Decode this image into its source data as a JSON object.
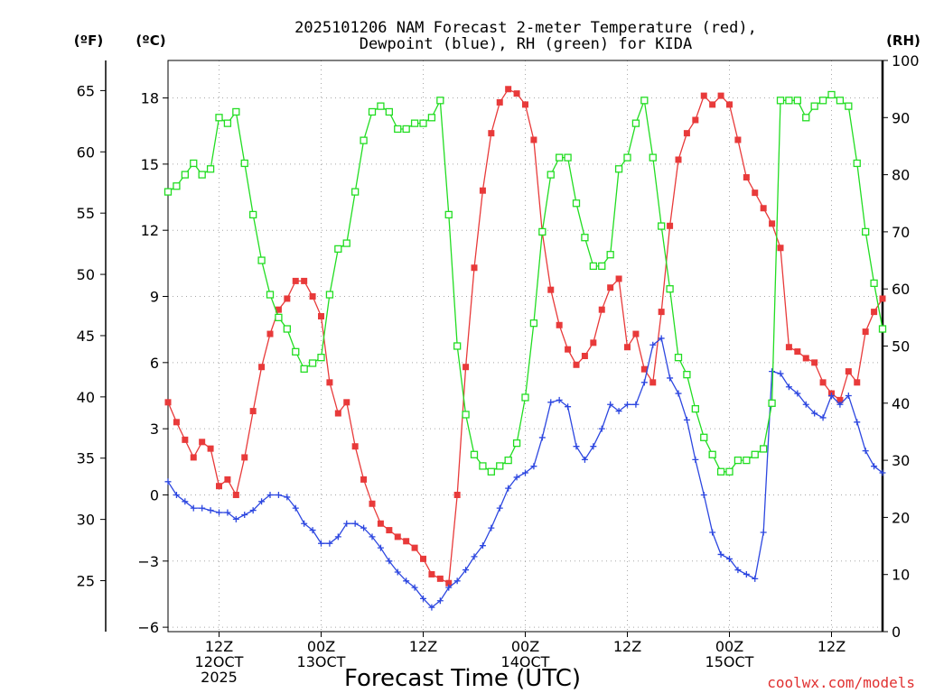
{
  "chart_data": {
    "type": "line",
    "title_line1": "2025101206 NAM Forecast 2-meter Temperature (red),",
    "title_line2": "Dewpoint (blue), RH (green) for KIDA",
    "left_outer_unit": "(ºF)",
    "left_inner_unit": "(ºC)",
    "right_unit": "(RH)",
    "xlabel": "Forecast Time (UTC)",
    "credit": "coolwx.com/models",
    "grid": true,
    "x_hours_range": [
      0,
      84
    ],
    "celsius_range": [
      -6.2,
      19.7
    ],
    "rh_range": [
      0,
      100
    ],
    "celsius_ticks": [
      18,
      15,
      12,
      9,
      6,
      3,
      0,
      -3,
      -6
    ],
    "celsius_tick_labels": [
      "18",
      "15",
      "12",
      "9",
      "6",
      "3",
      "0",
      "−3",
      "−6"
    ],
    "fahrenheit_ticks": [
      65,
      60,
      55,
      50,
      45,
      40,
      35,
      30,
      25
    ],
    "rh_ticks": [
      0,
      10,
      20,
      30,
      40,
      50,
      60,
      70,
      80,
      90,
      100
    ],
    "x_ticks": [
      {
        "hour": 6,
        "labels": [
          "12Z",
          "12OCT",
          "2025"
        ]
      },
      {
        "hour": 18,
        "labels": [
          "00Z",
          "13OCT"
        ]
      },
      {
        "hour": 30,
        "labels": [
          "12Z"
        ]
      },
      {
        "hour": 42,
        "labels": [
          "00Z",
          "14OCT"
        ]
      },
      {
        "hour": 54,
        "labels": [
          "12Z"
        ]
      },
      {
        "hour": 66,
        "labels": [
          "00Z",
          "15OCT"
        ]
      },
      {
        "hour": 78,
        "labels": [
          "12Z"
        ]
      }
    ],
    "hours": [
      0,
      1,
      2,
      3,
      4,
      5,
      6,
      7,
      8,
      9,
      10,
      11,
      12,
      13,
      14,
      15,
      16,
      17,
      18,
      19,
      20,
      21,
      22,
      23,
      24,
      25,
      26,
      27,
      28,
      29,
      30,
      31,
      32,
      33,
      34,
      35,
      36,
      37,
      38,
      39,
      40,
      41,
      42,
      43,
      44,
      45,
      46,
      47,
      48,
      49,
      50,
      51,
      52,
      53,
      54,
      55,
      56,
      57,
      58,
      59,
      60,
      61,
      62,
      63,
      64,
      65,
      66,
      67,
      68,
      69,
      70,
      71,
      72,
      73,
      74,
      75,
      76,
      77,
      78,
      79,
      80,
      81,
      82,
      83,
      84
    ],
    "series": [
      {
        "name": "Temperature",
        "color": "#e83a3a",
        "marker": "filled-square",
        "axis": "celsius",
        "values": [
          4.2,
          3.3,
          2.5,
          1.7,
          2.4,
          2.1,
          0.4,
          0.7,
          0.0,
          1.7,
          3.8,
          5.8,
          7.3,
          8.4,
          8.9,
          9.7,
          9.7,
          9.0,
          8.1,
          5.1,
          3.7,
          4.2,
          2.2,
          0.7,
          -0.4,
          -1.3,
          -1.6,
          -1.9,
          -2.1,
          -2.4,
          -2.9,
          -3.6,
          -3.8,
          -4.0,
          0.0,
          5.8,
          10.3,
          13.8,
          16.4,
          17.8,
          18.4,
          18.2,
          17.7,
          16.1,
          11.9,
          9.3,
          7.7,
          6.6,
          5.9,
          6.3,
          6.9,
          8.4,
          9.4,
          9.8,
          6.7,
          7.3,
          5.7,
          5.1,
          8.3,
          12.2,
          15.2,
          16.4,
          17.0,
          18.1,
          17.7,
          18.1,
          17.7,
          16.1,
          14.4,
          13.7,
          13.0,
          12.3,
          11.2,
          6.7,
          6.5,
          6.2,
          6.0,
          5.1,
          4.6,
          4.3,
          5.6,
          5.1,
          7.4,
          8.3,
          8.9
        ]
      },
      {
        "name": "Dewpoint",
        "color": "#2d47e0",
        "marker": "plus",
        "axis": "celsius",
        "values": [
          0.6,
          0.0,
          -0.3,
          -0.6,
          -0.6,
          -0.7,
          -0.8,
          -0.8,
          -1.1,
          -0.9,
          -0.7,
          -0.3,
          0.0,
          0.0,
          -0.1,
          -0.6,
          -1.3,
          -1.6,
          -2.2,
          -2.2,
          -1.9,
          -1.3,
          -1.3,
          -1.5,
          -1.9,
          -2.4,
          -3.0,
          -3.5,
          -3.9,
          -4.2,
          -4.7,
          -5.1,
          -4.8,
          -4.2,
          -3.9,
          -3.4,
          -2.8,
          -2.3,
          -1.5,
          -0.6,
          0.3,
          0.8,
          1.0,
          1.3,
          2.6,
          4.2,
          4.3,
          4.0,
          2.2,
          1.6,
          2.2,
          3.0,
          4.1,
          3.8,
          4.1,
          4.1,
          5.1,
          6.8,
          7.1,
          5.3,
          4.6,
          3.4,
          1.6,
          0.0,
          -1.7,
          -2.7,
          -2.9,
          -3.4,
          -3.6,
          -3.8,
          -1.7,
          5.6,
          5.5,
          4.9,
          4.6,
          4.1,
          3.7,
          3.5,
          4.5,
          4.1,
          4.5,
          3.3,
          2.0,
          1.3,
          1.0
        ]
      },
      {
        "name": "RH",
        "color": "#22dd22",
        "marker": "open-square",
        "axis": "rh",
        "values": [
          77,
          78,
          80,
          82,
          80,
          81,
          90,
          89,
          91,
          82,
          73,
          65,
          59,
          55,
          53,
          49,
          46,
          47,
          48,
          59,
          67,
          68,
          77,
          86,
          91,
          92,
          91,
          88,
          88,
          89,
          89,
          90,
          93,
          73,
          50,
          38,
          31,
          29,
          28,
          29,
          30,
          33,
          41,
          54,
          70,
          80,
          83,
          83,
          75,
          69,
          64,
          64,
          66,
          81,
          83,
          89,
          93,
          83,
          71,
          60,
          48,
          45,
          39,
          34,
          31,
          28,
          28,
          30,
          30,
          31,
          32,
          40,
          93,
          93,
          93,
          90,
          92,
          93,
          94,
          93,
          92,
          82,
          70,
          61,
          53
        ]
      }
    ]
  }
}
